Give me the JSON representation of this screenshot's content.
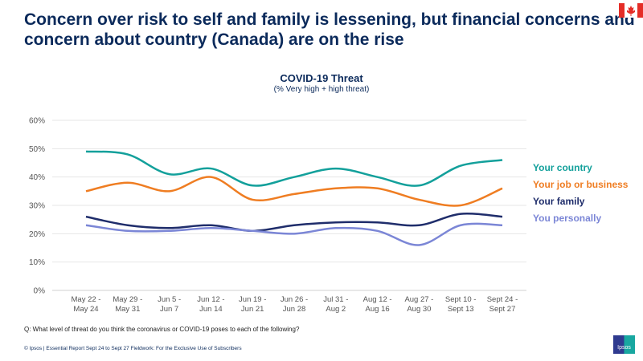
{
  "title": "Concern over risk to self and family is lessening, but financial concerns and concern about country (Canada) are on the rise",
  "footnote_question": "Q: What level of threat do you think the coronavirus or COVID-19 poses to each of the following?",
  "footer": "© Ipsos  |  Essential Report  Sept 24 to Sept 27 Fieldwork: For the Exclusive Use of Subscribers",
  "logo_text": "Ipsos",
  "chart_data": {
    "type": "line",
    "title": "COVID-19 Threat",
    "subtitle": "(% Very high + high threat)",
    "categories": [
      [
        "May 22 -",
        "May 24"
      ],
      [
        "May 29 -",
        "May 31"
      ],
      [
        "Jun 5 -",
        "Jun 7"
      ],
      [
        "Jun 12 -",
        "Jun 14"
      ],
      [
        "Jun 19 -",
        "Jun 21"
      ],
      [
        "Jun 26 -",
        "Jun 28"
      ],
      [
        "Jul 31 -",
        "Aug 2"
      ],
      [
        "Aug 12 -",
        "Aug 16"
      ],
      [
        "Aug 27 -",
        "Aug 30"
      ],
      [
        "Sept 10 -",
        "Sept 13"
      ],
      [
        "Sept 24 -",
        "Sept 27"
      ]
    ],
    "yticks": [
      "0%",
      "10%",
      "20%",
      "30%",
      "40%",
      "50%",
      "60%"
    ],
    "ylim": [
      0,
      60
    ],
    "grid": true,
    "legend_placement": "right",
    "series": [
      {
        "name": "Your country",
        "color": "#13a09b",
        "values": [
          49,
          48,
          41,
          43,
          37,
          40,
          43,
          40,
          37,
          44,
          46
        ]
      },
      {
        "name": "Your job or business",
        "color": "#ef7d22",
        "values": [
          35,
          38,
          35,
          40,
          32,
          34,
          36,
          36,
          32,
          30,
          36
        ]
      },
      {
        "name": "Your family",
        "color": "#1f2d6b",
        "values": [
          26,
          23,
          22,
          23,
          21,
          23,
          24,
          24,
          23,
          27,
          26
        ]
      },
      {
        "name": "You personally",
        "color": "#7b86d6",
        "values": [
          23,
          21,
          21,
          22,
          21,
          20,
          22,
          21,
          16,
          23,
          23
        ]
      }
    ]
  }
}
